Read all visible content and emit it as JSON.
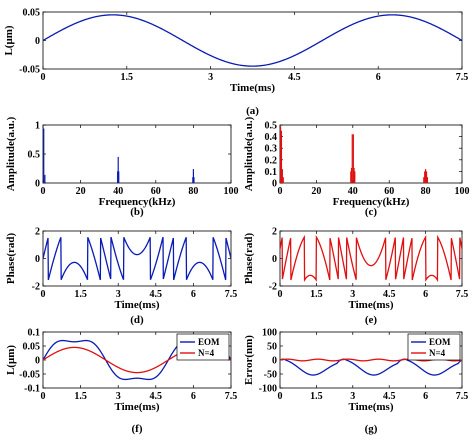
{
  "colors": {
    "blue": "#0a1bb4",
    "red": "#e01010",
    "axis": "#000000"
  },
  "chart_data": [
    {
      "id": "a",
      "type": "line",
      "caption": "(a)",
      "xlabel": "Time(ms)",
      "ylabel": "L(μm)",
      "xlim": [
        0,
        7.5
      ],
      "ylim": [
        -0.05,
        0.05
      ],
      "xticks": [
        0,
        1.5,
        3,
        4.5,
        6,
        7.5
      ],
      "xtick_labels": [
        "0",
        "1.5",
        "3",
        "4.5",
        "6",
        "7.5"
      ],
      "yticks": [
        -0.05,
        0,
        0.05
      ],
      "ytick_labels": [
        "-0.05",
        "0",
        "0.05"
      ],
      "series": [
        {
          "color": "blue",
          "model": {
            "kind": "sine",
            "amplitude": 0.045,
            "period_ms": 5
          }
        }
      ]
    },
    {
      "id": "b",
      "type": "bar",
      "caption": "(b)",
      "xlabel": "Frequency(kHz)",
      "ylabel": "Amplitude(a.u.)",
      "xlim": [
        0,
        100
      ],
      "ylim": [
        0,
        1
      ],
      "xticks": [
        0,
        20,
        40,
        60,
        80,
        100
      ],
      "xtick_labels": [
        "0",
        "20",
        "40",
        "60",
        "80",
        "100"
      ],
      "yticks": [
        0,
        0.5,
        1
      ],
      "ytick_labels": [
        "0",
        "0.5",
        "1"
      ],
      "series": [
        {
          "color": "blue",
          "peaks": [
            {
              "x": 0.4,
              "y": 0.94
            },
            {
              "x": 1.0,
              "y": 0.14
            },
            {
              "x": 39.7,
              "y": 0.2
            },
            {
              "x": 40.0,
              "y": 0.45
            },
            {
              "x": 40.3,
              "y": 0.2
            },
            {
              "x": 79.7,
              "y": 0.1
            },
            {
              "x": 80.0,
              "y": 0.24
            },
            {
              "x": 80.3,
              "y": 0.1
            }
          ]
        }
      ]
    },
    {
      "id": "c",
      "type": "bar",
      "caption": "(c)",
      "xlabel": "Frequency(kHz)",
      "ylabel": "Amplitude(a.u.)",
      "xlim": [
        0,
        100
      ],
      "ylim": [
        0,
        0.5
      ],
      "xticks": [
        0,
        20,
        40,
        60,
        80,
        100
      ],
      "xtick_labels": [
        "0",
        "20",
        "40",
        "60",
        "80",
        "100"
      ],
      "yticks": [
        0,
        0.1,
        0.2,
        0.3,
        0.4,
        0.5
      ],
      "ytick_labels": [
        "0",
        "0.1",
        "0.2",
        "0.3",
        "0.4",
        "0.5"
      ],
      "series": [
        {
          "color": "red",
          "peaks": [
            {
              "x": 0.3,
              "y": 0.49
            },
            {
              "x": 0.8,
              "y": 0.45
            },
            {
              "x": 1.3,
              "y": 0.12
            },
            {
              "x": 1.8,
              "y": 0.05
            },
            {
              "x": 38.9,
              "y": 0.1
            },
            {
              "x": 39.3,
              "y": 0.13
            },
            {
              "x": 39.7,
              "y": 0.42
            },
            {
              "x": 40.3,
              "y": 0.42
            },
            {
              "x": 40.7,
              "y": 0.13
            },
            {
              "x": 41.1,
              "y": 0.1
            },
            {
              "x": 79.0,
              "y": 0.05
            },
            {
              "x": 79.5,
              "y": 0.1
            },
            {
              "x": 80.0,
              "y": 0.12
            },
            {
              "x": 80.5,
              "y": 0.1
            },
            {
              "x": 81.0,
              "y": 0.05
            }
          ]
        }
      ]
    },
    {
      "id": "d",
      "type": "line",
      "caption": "(d)",
      "xlabel": "Time(ms)",
      "ylabel": "Phase(rad)",
      "xlim": [
        0,
        7.5
      ],
      "ylim": [
        -2,
        2
      ],
      "xticks": [
        0,
        1.5,
        3,
        4.5,
        6,
        7.5
      ],
      "xtick_labels": [
        "0",
        "1.5",
        "3",
        "4.5",
        "6",
        "7.5"
      ],
      "yticks": [
        -2,
        0,
        2
      ],
      "ytick_labels": [
        "-2",
        "0",
        "2"
      ],
      "series": [
        {
          "color": "blue",
          "model": {
            "kind": "wrapped_phase",
            "amplitude": 6.0,
            "period_ms": 5
          }
        }
      ]
    },
    {
      "id": "e",
      "type": "line",
      "caption": "(e)",
      "xlabel": "Time(ms)",
      "ylabel": "Phase(rad)",
      "xlim": [
        0,
        7.5
      ],
      "ylim": [
        -2,
        2
      ],
      "xticks": [
        0,
        1.5,
        3,
        4.5,
        6,
        7.5
      ],
      "xtick_labels": [
        "0",
        "1.5",
        "3",
        "4.5",
        "6",
        "7.5"
      ],
      "yticks": [
        -2,
        0,
        2
      ],
      "ytick_labels": [
        "-2",
        "0",
        "2"
      ],
      "series": [
        {
          "color": "red",
          "model": {
            "kind": "wrapped_phase",
            "amplitude": 7.5,
            "period_ms": 5,
            "offset": 0.7
          }
        }
      ]
    },
    {
      "id": "f",
      "type": "line",
      "caption": "(f)",
      "xlabel": "Time(ms)",
      "ylabel": "L(μm)",
      "xlim": [
        0,
        7.5
      ],
      "ylim": [
        -0.1,
        0.1
      ],
      "xticks": [
        0,
        1.5,
        3,
        4.5,
        6,
        7.5
      ],
      "xtick_labels": [
        "0",
        "1.5",
        "3",
        "4.5",
        "6",
        "7.5"
      ],
      "yticks": [
        -0.1,
        -0.05,
        0,
        0.05,
        0.1
      ],
      "ytick_labels": [
        "-0.1",
        "-0.05",
        "0",
        "0.05",
        "0.1"
      ],
      "legend": {
        "position": "top-right"
      },
      "series": [
        {
          "name": "EOM",
          "color": "blue",
          "model": {
            "kind": "sine_plus_third",
            "amplitude": 0.08,
            "third": 0.015,
            "period_ms": 5
          }
        },
        {
          "name": "N=4",
          "color": "red",
          "model": {
            "kind": "sine",
            "amplitude": 0.045,
            "period_ms": 5
          }
        }
      ]
    },
    {
      "id": "g",
      "type": "line",
      "caption": "(g)",
      "xlabel": "Time(ms)",
      "ylabel": "Error(nm)",
      "xlim": [
        0,
        7.5
      ],
      "ylim": [
        -100,
        100
      ],
      "xticks": [
        0,
        1.5,
        3,
        4.5,
        6,
        7.5
      ],
      "xtick_labels": [
        "0",
        "1.5",
        "3",
        "4.5",
        "6",
        "7.5"
      ],
      "yticks": [
        -100,
        -50,
        0,
        50,
        100
      ],
      "ytick_labels": [
        "-100",
        "-50",
        "0",
        "50",
        "100"
      ],
      "legend": {
        "position": "top-right"
      },
      "series": [
        {
          "name": "EOM",
          "color": "blue",
          "model": {
            "kind": "error_profile"
          }
        },
        {
          "name": "N=4",
          "color": "red",
          "model": {
            "kind": "small_ripple",
            "amplitude": 3
          }
        }
      ]
    }
  ]
}
